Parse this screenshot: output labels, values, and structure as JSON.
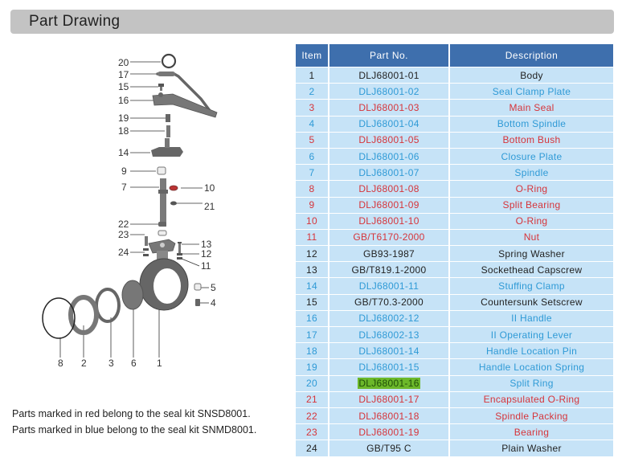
{
  "header": {
    "title": "Part Drawing"
  },
  "colors": {
    "header_bg": "#3e6fad",
    "row_bg": "#c6e3f7",
    "black": "#222222",
    "blue": "#2f9ad6",
    "red": "#d6343a",
    "highlight": "#6cb82a",
    "title_bar": "#c3c3c3"
  },
  "drawing": {
    "callouts": {
      "c20": "20",
      "c17": "17",
      "c15": "15",
      "c16": "16",
      "c19": "19",
      "c18": "18",
      "c14": "14",
      "c9": "9",
      "c7": "7",
      "c10": "10",
      "c21": "21",
      "c22": "22",
      "c23": "23",
      "c24": "24",
      "c13": "13",
      "c12": "12",
      "c11": "11",
      "c5": "5",
      "c4": "4",
      "c8": "8",
      "c2": "2",
      "c3": "3",
      "c6": "6",
      "c1": "1"
    }
  },
  "notes": {
    "red": "Parts marked in red  belong to the seal kit SNSD8001.",
    "blue": "Parts marked in blue  belong to the seal kit SNMD8001."
  },
  "table": {
    "headers": {
      "item": "Item",
      "part_no": "Part No.",
      "description": "Description"
    },
    "rows": [
      {
        "item": "1",
        "part_no": "DLJ68001-01",
        "description": "Body",
        "color": "black"
      },
      {
        "item": "2",
        "part_no": "DLJ68001-02",
        "description": "Seal Clamp Plate",
        "color": "blue"
      },
      {
        "item": "3",
        "part_no": "DLJ68001-03",
        "description": "Main Seal",
        "color": "red"
      },
      {
        "item": "4",
        "part_no": "DLJ68001-04",
        "description": "Bottom Spindle",
        "color": "blue"
      },
      {
        "item": "5",
        "part_no": "DLJ68001-05",
        "description": "Bottom Bush",
        "color": "red"
      },
      {
        "item": "6",
        "part_no": "DLJ68001-06",
        "description": "Closure Plate",
        "color": "blue"
      },
      {
        "item": "7",
        "part_no": "DLJ68001-07",
        "description": "Spindle",
        "color": "blue"
      },
      {
        "item": "8",
        "part_no": "DLJ68001-08",
        "description": "O-Ring",
        "color": "red"
      },
      {
        "item": "9",
        "part_no": "DLJ68001-09",
        "description": "Split Bearing",
        "color": "red"
      },
      {
        "item": "10",
        "part_no": "DLJ68001-10",
        "description": "O-Ring",
        "color": "red"
      },
      {
        "item": "11",
        "part_no": "GB/T6170-2000",
        "description": "Nut",
        "color": "red"
      },
      {
        "item": "12",
        "part_no": "GB93-1987",
        "description": "Spring Washer",
        "color": "black"
      },
      {
        "item": "13",
        "part_no": "GB/T819.1-2000",
        "description": "Sockethead Capscrew",
        "color": "black"
      },
      {
        "item": "14",
        "part_no": "DLJ68001-11",
        "description": "Stuffing Clamp",
        "color": "blue"
      },
      {
        "item": "15",
        "part_no": "GB/T70.3-2000",
        "description": "Countersunk Setscrew",
        "color": "black"
      },
      {
        "item": "16",
        "part_no": "DLJ68002-12",
        "description": "II Handle",
        "color": "blue"
      },
      {
        "item": "17",
        "part_no": "DLJ68002-13",
        "description": "II Operating Lever",
        "color": "blue"
      },
      {
        "item": "18",
        "part_no": "DLJ68001-14",
        "description": "Handle Location Pin",
        "color": "blue"
      },
      {
        "item": "19",
        "part_no": "DLJ68001-15",
        "description": "Handle Location Spring",
        "color": "blue"
      },
      {
        "item": "20",
        "part_no": "DLJ68001-16",
        "description": "Split Ring",
        "color": "blue",
        "highlighted": true
      },
      {
        "item": "21",
        "part_no": "DLJ68001-17",
        "description": "Encapsulated O-Ring",
        "color": "red"
      },
      {
        "item": "22",
        "part_no": "DLJ68001-18",
        "description": "Spindle Packing",
        "color": "red"
      },
      {
        "item": "23",
        "part_no": "DLJ68001-19",
        "description": "Bearing",
        "color": "red"
      },
      {
        "item": "24",
        "part_no": "GB/T95 C",
        "description": "Plain Washer",
        "color": "black"
      }
    ]
  }
}
